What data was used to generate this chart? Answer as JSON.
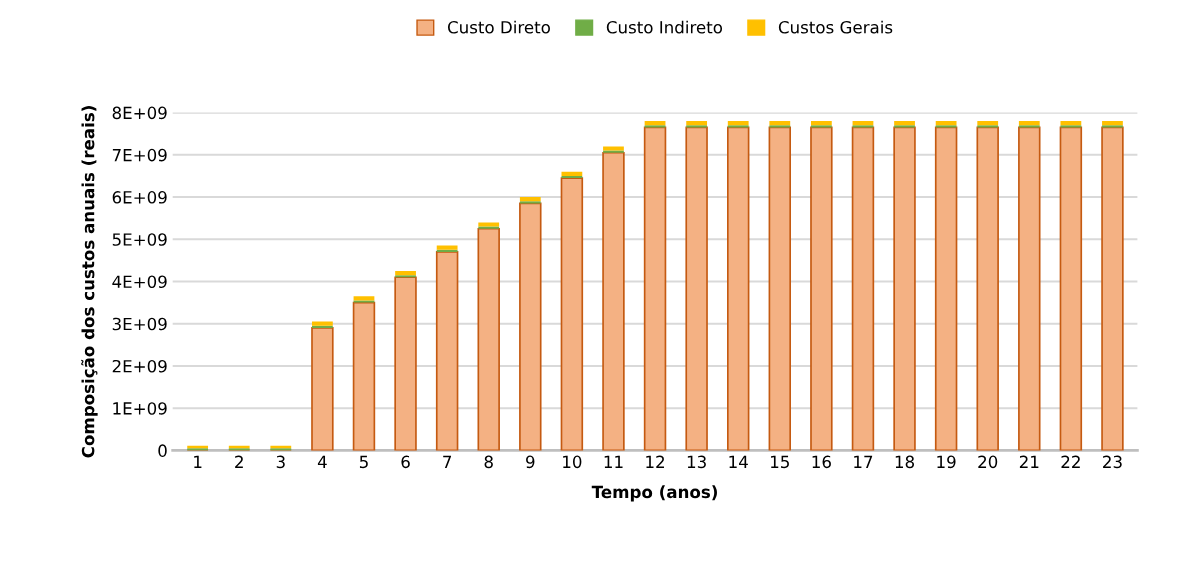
{
  "chart_data": {
    "type": "bar",
    "stacked": true,
    "xlabel": "Tempo (anos)",
    "ylabel": "Composição dos custos anuais (reais)",
    "categories": [
      "1",
      "2",
      "3",
      "4",
      "5",
      "6",
      "7",
      "8",
      "9",
      "10",
      "11",
      "12",
      "13",
      "14",
      "15",
      "16",
      "17",
      "18",
      "19",
      "20",
      "21",
      "22",
      "23"
    ],
    "series": [
      {
        "name": "Custo Direto",
        "color": "#f4b183",
        "values": [
          0,
          0,
          0,
          2900000000,
          3500000000,
          4100000000,
          4700000000,
          5250000000,
          5850000000,
          6450000000,
          7050000000,
          7650000000,
          7650000000,
          7650000000,
          7650000000,
          7650000000,
          7650000000,
          7650000000,
          7650000000,
          7650000000,
          7650000000,
          7650000000,
          7650000000
        ]
      },
      {
        "name": "Custo Indireto",
        "color": "#70ad47",
        "values": [
          50000000,
          50000000,
          50000000,
          50000000,
          50000000,
          50000000,
          50000000,
          50000000,
          50000000,
          50000000,
          50000000,
          50000000,
          50000000,
          50000000,
          50000000,
          50000000,
          50000000,
          50000000,
          50000000,
          50000000,
          50000000,
          50000000,
          50000000
        ]
      },
      {
        "name": "Custos Gerais",
        "color": "#ffc000",
        "values": [
          60000000,
          60000000,
          60000000,
          100000000,
          100000000,
          100000000,
          100000000,
          100000000,
          100000000,
          100000000,
          100000000,
          100000000,
          100000000,
          100000000,
          100000000,
          100000000,
          100000000,
          100000000,
          100000000,
          100000000,
          100000000,
          100000000,
          100000000
        ]
      }
    ],
    "ylim": [
      0,
      8000000000
    ],
    "yticks": [
      0,
      {
        "value": 1000000000,
        "label": "1E+09"
      },
      {
        "value": 2000000000,
        "label": "2E+09"
      },
      {
        "value": 3000000000,
        "label": "3E+09"
      },
      {
        "value": 4000000000,
        "label": "4E+09"
      },
      {
        "value": 5000000000,
        "label": "5E+09"
      },
      {
        "value": 6000000000,
        "label": "6E+09"
      },
      {
        "value": 7000000000,
        "label": "7E+09"
      },
      {
        "value": 8000000000,
        "label": "8E+09"
      }
    ],
    "grid": "y",
    "legend": "top"
  }
}
